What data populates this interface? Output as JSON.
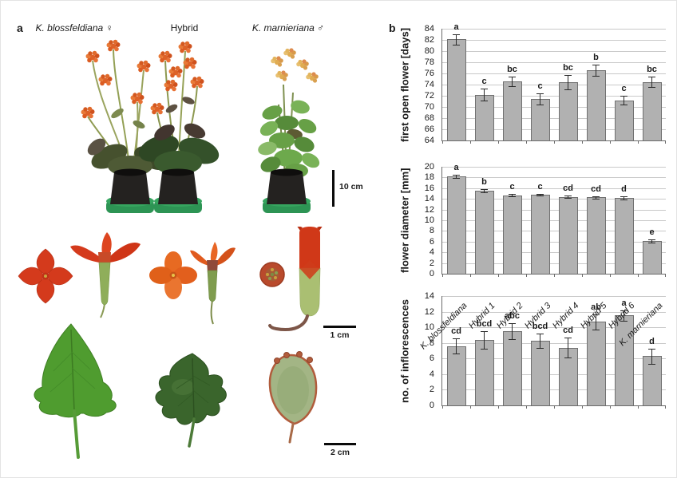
{
  "panel_a": {
    "label": "a",
    "column_labels": [
      "K. blossfeldiana ♀",
      "Hybrid",
      "K. marnieriana ♂"
    ],
    "scale_bar_plants": "10 cm",
    "scale_bar_flowers": "1 cm",
    "scale_bar_leaves": "2 cm"
  },
  "panel_b": {
    "label": "b"
  },
  "colors": {
    "bar_fill": "#b1b1b1",
    "bar_border": "#707070",
    "gridline": "#c9c9c9",
    "axis": "#6a6a6a",
    "error_bar": "#2b2b2b",
    "flower_red": "#d43a1c",
    "flower_orange": "#e8661f",
    "leaf_green": "#4f9c2f"
  },
  "chart_data": [
    {
      "type": "bar",
      "title": "",
      "xlabel": "",
      "ylabel": "first open flower [days]",
      "ylim": [
        64,
        84
      ],
      "ytick_step": 2,
      "grid": true,
      "legend": false,
      "categories": [
        "K. blossfeldiana",
        "Hybrid 1",
        "Hybrid 2",
        "Hybrid 3",
        "Hybrid 4",
        "Hybrid 5",
        "Hybrid 6",
        "K. marnieriana"
      ],
      "values": [
        82.1,
        72.2,
        74.6,
        71.4,
        74.4,
        76.6,
        71.2,
        74.5
      ],
      "errors": [
        0.9,
        1.1,
        0.9,
        1.0,
        1.3,
        1.0,
        0.8,
        0.9
      ],
      "letters": [
        "a",
        "c",
        "bc",
        "c",
        "bc",
        "b",
        "c",
        "bc"
      ],
      "show_x_labels": false
    },
    {
      "type": "bar",
      "title": "",
      "xlabel": "",
      "ylabel": "flower diameter [mm]",
      "ylim": [
        0,
        20
      ],
      "ytick_step": 2,
      "grid": true,
      "legend": false,
      "categories": [
        "K. blossfeldiana",
        "Hybrid 1",
        "Hybrid 2",
        "Hybrid 3",
        "Hybrid 4",
        "Hybrid 5",
        "Hybrid 6",
        "K. marnieriana"
      ],
      "values": [
        18.2,
        15.5,
        14.7,
        14.8,
        14.4,
        14.3,
        14.2,
        6.1
      ],
      "errors": [
        0.3,
        0.25,
        0.2,
        0.2,
        0.25,
        0.2,
        0.3,
        0.25
      ],
      "letters": [
        "a",
        "b",
        "c",
        "c",
        "cd",
        "cd",
        "d",
        "e"
      ],
      "show_x_labels": false
    },
    {
      "type": "bar",
      "title": "",
      "xlabel": "",
      "ylabel": "no. of inflorescences",
      "ylim": [
        0,
        14
      ],
      "ytick_step": 2,
      "grid": true,
      "legend": false,
      "categories": [
        "K. blossfeldiana",
        "Hybrid 1",
        "Hybrid 2",
        "Hybrid 3",
        "Hybrid 4",
        "Hybrid 5",
        "Hybrid 6",
        "K. marnieriana"
      ],
      "values": [
        7.6,
        8.4,
        9.5,
        8.3,
        7.4,
        10.7,
        11.5,
        6.3
      ],
      "errors": [
        1.0,
        1.1,
        1.0,
        0.9,
        1.3,
        1.0,
        0.7,
        1.0
      ],
      "letters": [
        "cd",
        "bcd",
        "abc",
        "bcd",
        "cd",
        "ab",
        "a",
        "d"
      ],
      "show_x_labels": true
    }
  ]
}
